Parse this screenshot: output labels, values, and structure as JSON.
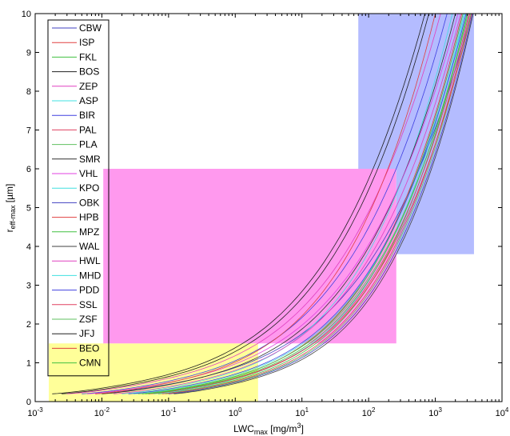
{
  "chart_data": {
    "type": "line",
    "title": "",
    "xlabel": {
      "main": "LWC",
      "sub": "max",
      "unit": " [mg/m",
      "sup": "3",
      "close": "]"
    },
    "ylabel": {
      "main": "r",
      "sub": "eff-max",
      "unit": " [µm]"
    },
    "xscale": "log",
    "xlim": [
      0.001,
      10000
    ],
    "ylim": [
      0,
      10
    ],
    "x_ticks": [
      {
        "base": "10",
        "exp": "-3"
      },
      {
        "base": "10",
        "exp": "-2"
      },
      {
        "base": "10",
        "exp": "-1"
      },
      {
        "base": "10",
        "exp": "0"
      },
      {
        "base": "10",
        "exp": "1"
      },
      {
        "base": "10",
        "exp": "2"
      },
      {
        "base": "10",
        "exp": "3"
      },
      {
        "base": "10",
        "exp": "4"
      }
    ],
    "y_ticks": [
      "0",
      "1",
      "2",
      "3",
      "4",
      "5",
      "6",
      "7",
      "8",
      "9",
      "10"
    ],
    "grid": false,
    "legend_position": "top-left",
    "regions": [
      {
        "x": [
          0.0016,
          2.2
        ],
        "y": [
          0,
          1.5
        ],
        "color": "#ffff99"
      },
      {
        "x": [
          0.0105,
          260
        ],
        "y": [
          1.5,
          6
        ],
        "color": "#ff99ee"
      },
      {
        "x": [
          70,
          3800
        ],
        "y": [
          6,
          10
        ],
        "color": "#b4bcff"
      },
      {
        "x": [
          260,
          3800
        ],
        "y": [
          3.8,
          6
        ],
        "color": "#b4bcff"
      }
    ],
    "series": [
      {
        "name": "CBW",
        "color": "#4040c0",
        "x_start": 0.008,
        "x_end": 3500
      },
      {
        "name": "ISP",
        "color": "#e04040",
        "x_start": 0.04,
        "x_end": 2500
      },
      {
        "name": "FKL",
        "color": "#40c040",
        "x_start": 0.07,
        "x_end": 3000
      },
      {
        "name": "BOS",
        "color": "#202020",
        "x_start": 0.0025,
        "x_end": 800
      },
      {
        "name": "ZEP",
        "color": "#e040c0",
        "x_start": 0.003,
        "x_end": 1200
      },
      {
        "name": "ASP",
        "color": "#40e0e0",
        "x_start": 0.02,
        "x_end": 1800
      },
      {
        "name": "BIR",
        "color": "#4040e0",
        "x_start": 0.005,
        "x_end": 1500
      },
      {
        "name": "PAL",
        "color": "#e04060",
        "x_start": 0.05,
        "x_end": 3200
      },
      {
        "name": "PLA",
        "color": "#60c060",
        "x_start": 0.09,
        "x_end": 3400
      },
      {
        "name": "SMR",
        "color": "#303030",
        "x_start": 0.01,
        "x_end": 2000
      },
      {
        "name": "VHL",
        "color": "#e040e0",
        "x_start": 0.006,
        "x_end": 2200
      },
      {
        "name": "KPO",
        "color": "#40e0e0",
        "x_start": 0.03,
        "x_end": 2800
      },
      {
        "name": "OBK",
        "color": "#4040c0",
        "x_start": 0.1,
        "x_end": 3600
      },
      {
        "name": "HPB",
        "color": "#e04040",
        "x_start": 0.008,
        "x_end": 1000
      },
      {
        "name": "MPZ",
        "color": "#40c040",
        "x_start": 0.04,
        "x_end": 2600
      },
      {
        "name": "WAL",
        "color": "#404040",
        "x_start": 0.12,
        "x_end": 3700
      },
      {
        "name": "HWL",
        "color": "#e040c0",
        "x_start": 0.015,
        "x_end": 2400
      },
      {
        "name": "MHD",
        "color": "#40e0e0",
        "x_start": 0.06,
        "x_end": 2700
      },
      {
        "name": "PDD",
        "color": "#4040e0",
        "x_start": 0.025,
        "x_end": 2900
      },
      {
        "name": "SSL",
        "color": "#e04060",
        "x_start": 0.08,
        "x_end": 3300
      },
      {
        "name": "ZSF",
        "color": "#60c060",
        "x_start": 0.035,
        "x_end": 3100
      },
      {
        "name": "JFJ",
        "color": "#202020",
        "x_start": 0.0018,
        "x_end": 700
      },
      {
        "name": "BEO",
        "color": "#e04040",
        "x_start": 0.05,
        "x_end": 3500
      },
      {
        "name": "CMN",
        "color": "#40c040",
        "x_start": 0.045,
        "x_end": 3000
      }
    ]
  }
}
